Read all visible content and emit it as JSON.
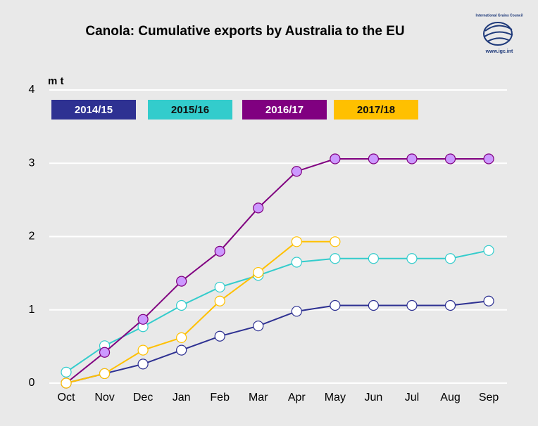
{
  "chart_data": {
    "type": "line",
    "title": "Canola: Cumulative exports by Australia to the EU",
    "y_label": "m t",
    "logo": {
      "name": "International Grains Council",
      "url": "www.igc.int"
    },
    "categories": [
      "Oct",
      "Nov",
      "Dec",
      "Jan",
      "Feb",
      "Mar",
      "Apr",
      "May",
      "Jun",
      "Jul",
      "Aug",
      "Sep"
    ],
    "ylim": [
      0,
      4
    ],
    "yticks": [
      0,
      1,
      2,
      3,
      4
    ],
    "grid": true,
    "series": [
      {
        "name": "2014/15",
        "color": "#2e3192",
        "marker_fill": "#ffffff",
        "values": [
          0,
          0.13,
          0.26,
          0.45,
          0.64,
          0.78,
          0.98,
          1.06,
          1.06,
          1.06,
          1.06,
          1.12
        ]
      },
      {
        "name": "2015/16",
        "color": "#33cccc",
        "marker_fill": "#ffffff",
        "values": [
          0.15,
          0.51,
          0.77,
          1.06,
          1.31,
          1.47,
          1.65,
          1.7,
          1.7,
          1.7,
          1.7,
          1.81
        ]
      },
      {
        "name": "2016/17",
        "color": "#800080",
        "marker_fill": "#cc99ff",
        "values": [
          0,
          0.42,
          0.87,
          1.39,
          1.8,
          2.39,
          2.89,
          3.06,
          3.06,
          3.06,
          3.06,
          3.06
        ]
      },
      {
        "name": "2017/18",
        "color": "#ffc000",
        "marker_fill": "#ffffff",
        "values": [
          0,
          0.13,
          0.45,
          0.62,
          1.12,
          1.51,
          1.93,
          1.93,
          null,
          null,
          null,
          null
        ]
      }
    ]
  }
}
